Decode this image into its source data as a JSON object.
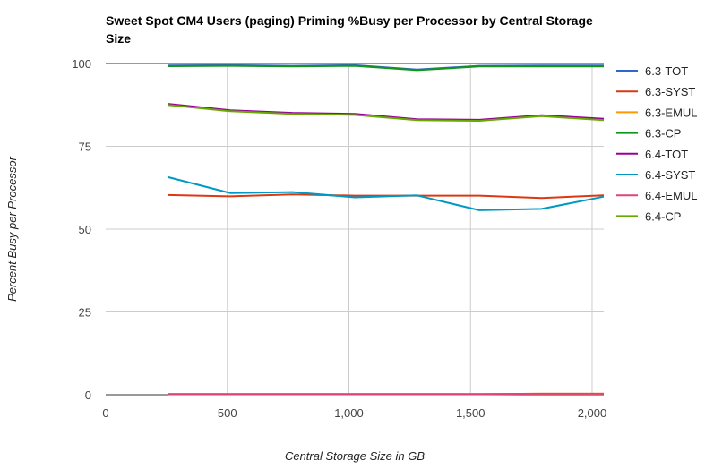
{
  "chart_data": {
    "type": "line",
    "title": "Sweet Spot CM4 Users (paging) Priming %Busy per Processor by Central Storage Size",
    "xlabel": "Central Storage Size in GB",
    "ylabel": "Percent Busy per Processor",
    "xlim": [
      0,
      2048
    ],
    "ylim": [
      0,
      100
    ],
    "x_ticks": [
      0,
      500,
      1000,
      1500,
      2000
    ],
    "x_tick_labels": [
      "0",
      "500",
      "1,000",
      "1,500",
      "2,000"
    ],
    "y_ticks": [
      0,
      25,
      50,
      75,
      100
    ],
    "y_tick_labels": [
      "0",
      "25",
      "50",
      "75",
      "100"
    ],
    "grid": true,
    "legend_position": "right",
    "x": [
      256,
      512,
      768,
      1024,
      1280,
      1536,
      1792,
      2048
    ],
    "series": [
      {
        "name": "6.3-TOT",
        "color": "#3366cc",
        "values": [
          99.4,
          99.5,
          99.3,
          99.5,
          98.2,
          99.3,
          99.4,
          99.4
        ]
      },
      {
        "name": "6.3-SYST",
        "color": "#dc3912",
        "values": [
          60.3,
          59.9,
          60.5,
          60.1,
          60.1,
          60.1,
          59.4,
          60.2
        ]
      },
      {
        "name": "6.3-EMUL",
        "color": "#ff9900",
        "values": [
          0.2,
          0.2,
          0.2,
          0.2,
          0.2,
          0.2,
          0.3,
          0.3
        ]
      },
      {
        "name": "6.3-CP",
        "color": "#109618",
        "values": [
          99.2,
          99.3,
          99.1,
          99.3,
          98.0,
          99.1,
          99.1,
          99.1
        ]
      },
      {
        "name": "6.4-TOT",
        "color": "#990099",
        "values": [
          87.8,
          85.9,
          85.1,
          84.8,
          83.2,
          83.0,
          84.4,
          83.3
        ]
      },
      {
        "name": "6.4-SYST",
        "color": "#0099c6",
        "values": [
          65.7,
          60.9,
          61.2,
          59.6,
          60.2,
          55.7,
          56.1,
          59.8
        ]
      },
      {
        "name": "6.4-EMUL",
        "color": "#dd4477",
        "values": [
          0.2,
          0.2,
          0.2,
          0.2,
          0.2,
          0.2,
          0.3,
          0.3
        ]
      },
      {
        "name": "6.4-CP",
        "color": "#66aa00",
        "values": [
          87.5,
          85.6,
          84.8,
          84.5,
          82.9,
          82.7,
          84.1,
          82.9
        ]
      }
    ]
  }
}
